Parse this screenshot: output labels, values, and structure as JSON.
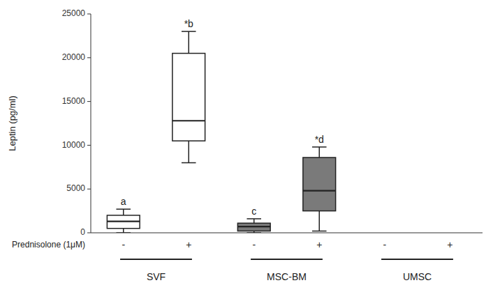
{
  "chart_data": {
    "type": "box",
    "ylabel": "Leptin (pg/ml)",
    "xlabel": "Prednisolone (1μM)",
    "categories": [
      "-",
      "+",
      "-",
      "+",
      "-",
      "+"
    ],
    "groups": [
      "SVF",
      "MSC-BM",
      "UMSC"
    ],
    "boxes": [
      {
        "whislo": 0,
        "q1": 500,
        "med": 1300,
        "q3": 2000,
        "whishi": 2700,
        "label": "a"
      },
      {
        "whislo": 8000,
        "q1": 10500,
        "med": 12800,
        "q3": 20500,
        "whishi": 23000,
        "label": "*b"
      },
      {
        "whislo": 0,
        "q1": 200,
        "med": 700,
        "q3": 1100,
        "whishi": 1600,
        "label": "c"
      },
      {
        "whislo": 200,
        "q1": 2500,
        "med": 4800,
        "q3": 8600,
        "whishi": 9800,
        "label": "*d"
      },
      {
        "whislo": null,
        "q1": null,
        "med": null,
        "q3": null,
        "whishi": null,
        "label": null
      },
      {
        "whislo": null,
        "q1": null,
        "med": null,
        "q3": null,
        "whishi": null,
        "label": null
      }
    ],
    "colors": [
      "white",
      "white",
      "#7a7a7a",
      "#7a7a7a",
      "white",
      "white"
    ],
    "ylim": [
      0,
      25000
    ],
    "yticks": [
      0,
      5000,
      10000,
      15000,
      20000,
      25000
    ]
  }
}
